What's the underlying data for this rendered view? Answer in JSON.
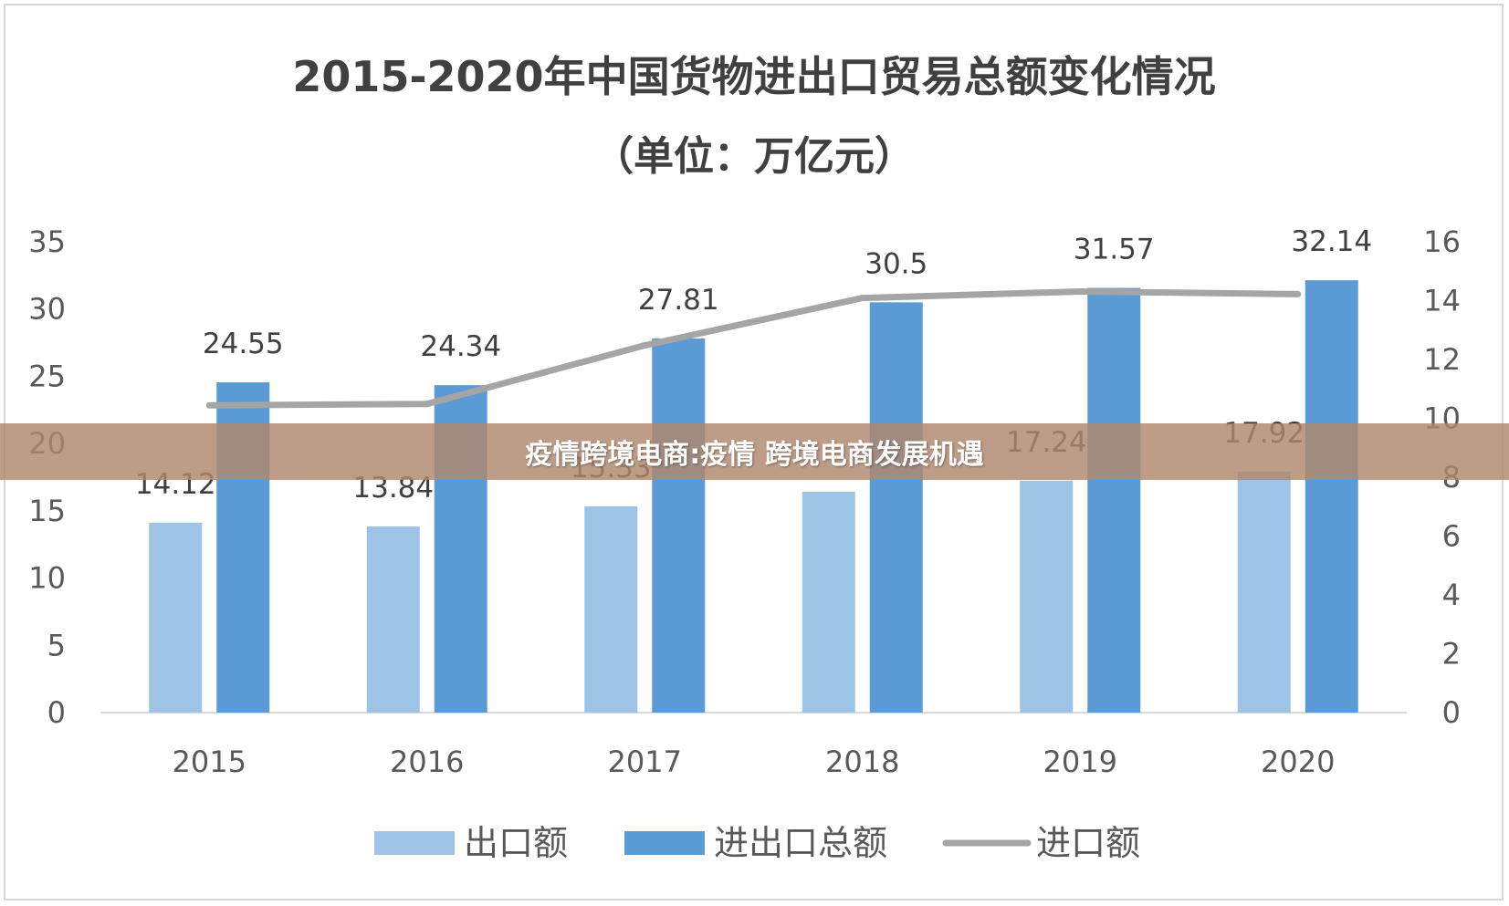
{
  "banner": {
    "text": "疫情跨境电商:疫情 跨境电商发展机遇"
  },
  "chart_data": {
    "type": "bar",
    "title": "2015-2020年中国货物进出口贸易总额变化情况",
    "subtitle": "（单位：万亿元）",
    "categories": [
      "2015",
      "2016",
      "2017",
      "2018",
      "2019",
      "2020"
    ],
    "series": [
      {
        "name": "出口额",
        "type": "bar",
        "axis": "left",
        "color": "#9dc3e6",
        "values": [
          14.12,
          13.84,
          15.33,
          16.42,
          17.24,
          17.92
        ],
        "labels": [
          "14.12",
          "13.84",
          "15.33",
          "",
          "17.24",
          "17.92"
        ]
      },
      {
        "name": "进出口总额",
        "type": "bar",
        "axis": "left",
        "color": "#5b9bd5",
        "values": [
          24.55,
          24.34,
          27.81,
          30.5,
          31.57,
          32.14
        ],
        "labels": [
          "24.55",
          "24.34",
          "27.81",
          "30.5",
          "31.57",
          "32.14"
        ]
      },
      {
        "name": "进口额",
        "type": "line",
        "axis": "right",
        "color": "#a5a5a5",
        "values": [
          10.44,
          10.49,
          12.48,
          14.09,
          14.31,
          14.22
        ]
      }
    ],
    "y_left": {
      "min": 0,
      "max": 35,
      "ticks": [
        "0",
        "5",
        "10",
        "15",
        "20",
        "25",
        "30",
        "35"
      ]
    },
    "y_right": {
      "min": 0,
      "max": 16,
      "ticks": [
        "0",
        "2",
        "4",
        "6",
        "8",
        "10",
        "12",
        "14",
        "16"
      ]
    },
    "grid": false,
    "legend": "bottom"
  }
}
